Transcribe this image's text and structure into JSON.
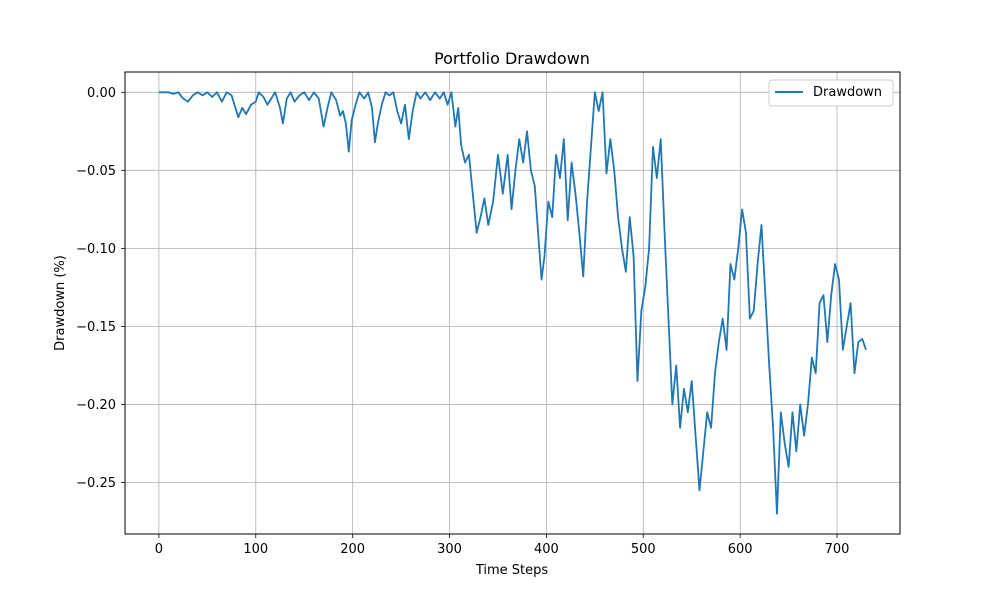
{
  "chart_data": {
    "type": "line",
    "title": "Portfolio Drawdown",
    "xlabel": "Time Steps",
    "ylabel": "Drawdown (%)",
    "xlim": [
      -35,
      765
    ],
    "ylim": [
      -0.283,
      0.013
    ],
    "grid": true,
    "legend_position": "top-right",
    "xticks": [
      0,
      100,
      200,
      300,
      400,
      500,
      600,
      700
    ],
    "xtick_labels": [
      "0",
      "100",
      "200",
      "300",
      "400",
      "500",
      "600",
      "700"
    ],
    "yticks": [
      0.0,
      -0.05,
      -0.1,
      -0.15,
      -0.2,
      -0.25
    ],
    "ytick_labels": [
      "0.00",
      "−0.05",
      "−0.10",
      "−0.15",
      "−0.20",
      "−0.25"
    ],
    "series": [
      {
        "name": "Drawdown",
        "color": "#1f77b4",
        "points": [
          [
            0,
            0.0
          ],
          [
            10,
            0.0
          ],
          [
            15,
            -0.001
          ],
          [
            20,
            0.0
          ],
          [
            25,
            -0.004
          ],
          [
            30,
            -0.006
          ],
          [
            35,
            -0.002
          ],
          [
            40,
            0.0
          ],
          [
            45,
            -0.002
          ],
          [
            50,
            0.0
          ],
          [
            55,
            -0.003
          ],
          [
            60,
            0.0
          ],
          [
            65,
            -0.006
          ],
          [
            70,
            0.0
          ],
          [
            75,
            -0.002
          ],
          [
            78,
            -0.008
          ],
          [
            82,
            -0.016
          ],
          [
            86,
            -0.01
          ],
          [
            90,
            -0.014
          ],
          [
            95,
            -0.008
          ],
          [
            100,
            -0.006
          ],
          [
            103,
            0.0
          ],
          [
            108,
            -0.003
          ],
          [
            112,
            -0.008
          ],
          [
            116,
            -0.004
          ],
          [
            120,
            0.0
          ],
          [
            125,
            -0.01
          ],
          [
            128,
            -0.02
          ],
          [
            132,
            -0.004
          ],
          [
            136,
            0.0
          ],
          [
            140,
            -0.006
          ],
          [
            145,
            -0.002
          ],
          [
            150,
            0.0
          ],
          [
            155,
            -0.005
          ],
          [
            160,
            0.0
          ],
          [
            165,
            -0.004
          ],
          [
            170,
            -0.022
          ],
          [
            174,
            -0.01
          ],
          [
            178,
            0.0
          ],
          [
            183,
            -0.005
          ],
          [
            187,
            -0.015
          ],
          [
            190,
            -0.012
          ],
          [
            193,
            -0.02
          ],
          [
            196,
            -0.038
          ],
          [
            199,
            -0.018
          ],
          [
            203,
            -0.008
          ],
          [
            207,
            0.0
          ],
          [
            212,
            -0.004
          ],
          [
            216,
            0.0
          ],
          [
            220,
            -0.01
          ],
          [
            223,
            -0.032
          ],
          [
            226,
            -0.02
          ],
          [
            230,
            -0.008
          ],
          [
            234,
            0.0
          ],
          [
            238,
            -0.002
          ],
          [
            242,
            0.0
          ],
          [
            246,
            -0.012
          ],
          [
            250,
            -0.02
          ],
          [
            254,
            -0.008
          ],
          [
            258,
            -0.03
          ],
          [
            262,
            -0.012
          ],
          [
            266,
            0.0
          ],
          [
            270,
            -0.004
          ],
          [
            275,
            0.0
          ],
          [
            280,
            -0.005
          ],
          [
            285,
            0.0
          ],
          [
            290,
            -0.004
          ],
          [
            294,
            0.0
          ],
          [
            298,
            -0.008
          ],
          [
            302,
            0.0
          ],
          [
            306,
            -0.022
          ],
          [
            309,
            -0.01
          ],
          [
            312,
            -0.034
          ],
          [
            316,
            -0.045
          ],
          [
            320,
            -0.04
          ],
          [
            324,
            -0.065
          ],
          [
            328,
            -0.09
          ],
          [
            332,
            -0.08
          ],
          [
            336,
            -0.068
          ],
          [
            340,
            -0.085
          ],
          [
            345,
            -0.07
          ],
          [
            350,
            -0.04
          ],
          [
            355,
            -0.065
          ],
          [
            360,
            -0.04
          ],
          [
            364,
            -0.075
          ],
          [
            368,
            -0.05
          ],
          [
            372,
            -0.03
          ],
          [
            376,
            -0.045
          ],
          [
            380,
            -0.025
          ],
          [
            384,
            -0.05
          ],
          [
            388,
            -0.06
          ],
          [
            392,
            -0.095
          ],
          [
            395,
            -0.12
          ],
          [
            398,
            -0.105
          ],
          [
            402,
            -0.07
          ],
          [
            406,
            -0.08
          ],
          [
            410,
            -0.04
          ],
          [
            414,
            -0.055
          ],
          [
            418,
            -0.03
          ],
          [
            422,
            -0.082
          ],
          [
            426,
            -0.045
          ],
          [
            430,
            -0.065
          ],
          [
            434,
            -0.09
          ],
          [
            438,
            -0.118
          ],
          [
            442,
            -0.07
          ],
          [
            446,
            -0.035
          ],
          [
            450,
            0.0
          ],
          [
            454,
            -0.012
          ],
          [
            458,
            0.0
          ],
          [
            462,
            -0.052
          ],
          [
            466,
            -0.03
          ],
          [
            470,
            -0.05
          ],
          [
            474,
            -0.08
          ],
          [
            478,
            -0.1
          ],
          [
            482,
            -0.115
          ],
          [
            486,
            -0.08
          ],
          [
            490,
            -0.105
          ],
          [
            494,
            -0.185
          ],
          [
            498,
            -0.14
          ],
          [
            502,
            -0.125
          ],
          [
            506,
            -0.1
          ],
          [
            510,
            -0.035
          ],
          [
            514,
            -0.055
          ],
          [
            518,
            -0.03
          ],
          [
            522,
            -0.09
          ],
          [
            526,
            -0.145
          ],
          [
            530,
            -0.2
          ],
          [
            534,
            -0.175
          ],
          [
            538,
            -0.215
          ],
          [
            542,
            -0.19
          ],
          [
            546,
            -0.205
          ],
          [
            550,
            -0.185
          ],
          [
            554,
            -0.22
          ],
          [
            558,
            -0.255
          ],
          [
            562,
            -0.23
          ],
          [
            566,
            -0.205
          ],
          [
            570,
            -0.215
          ],
          [
            574,
            -0.18
          ],
          [
            578,
            -0.16
          ],
          [
            582,
            -0.145
          ],
          [
            586,
            -0.165
          ],
          [
            590,
            -0.11
          ],
          [
            594,
            -0.12
          ],
          [
            598,
            -0.1
          ],
          [
            602,
            -0.075
          ],
          [
            606,
            -0.09
          ],
          [
            610,
            -0.145
          ],
          [
            614,
            -0.14
          ],
          [
            618,
            -0.11
          ],
          [
            622,
            -0.085
          ],
          [
            626,
            -0.13
          ],
          [
            630,
            -0.175
          ],
          [
            634,
            -0.215
          ],
          [
            638,
            -0.27
          ],
          [
            642,
            -0.205
          ],
          [
            646,
            -0.225
          ],
          [
            650,
            -0.24
          ],
          [
            654,
            -0.205
          ],
          [
            658,
            -0.23
          ],
          [
            662,
            -0.2
          ],
          [
            666,
            -0.22
          ],
          [
            670,
            -0.2
          ],
          [
            674,
            -0.17
          ],
          [
            678,
            -0.18
          ],
          [
            682,
            -0.135
          ],
          [
            686,
            -0.13
          ],
          [
            690,
            -0.16
          ],
          [
            694,
            -0.13
          ],
          [
            698,
            -0.11
          ],
          [
            702,
            -0.12
          ],
          [
            706,
            -0.165
          ],
          [
            710,
            -0.15
          ],
          [
            714,
            -0.135
          ],
          [
            718,
            -0.18
          ],
          [
            722,
            -0.16
          ],
          [
            726,
            -0.158
          ],
          [
            730,
            -0.165
          ]
        ]
      }
    ]
  }
}
